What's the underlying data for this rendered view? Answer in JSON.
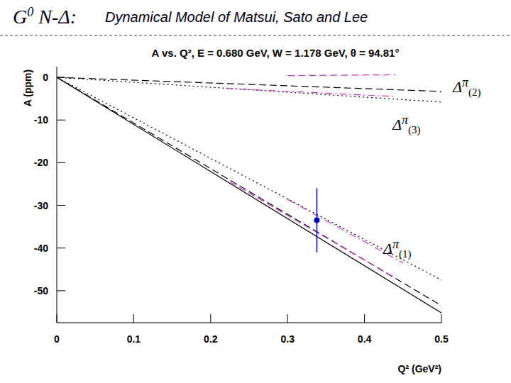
{
  "heading": {
    "title": "G",
    "title_sup": "0",
    "title_rest": " N-Δ:",
    "subtitle": "Dynamical Model of Matsui, Sato and Lee"
  },
  "chart_data": {
    "type": "line",
    "title": "A vs. Q², E = 0.680 GeV, W = 1.178 GeV, θ = 94.81°",
    "x_label": "Q² (GeV²)",
    "y_label": "A (ppm)",
    "xlim": [
      0,
      0.5
    ],
    "ylim": [
      -57.5,
      2.5
    ],
    "xticks": [
      0,
      0.1,
      0.2,
      0.3,
      0.4,
      0.5
    ],
    "yticks": [
      0,
      -10,
      -20,
      -30,
      -40,
      -50
    ],
    "grid": false,
    "annotations": [
      {
        "text": "Δ",
        "sup": "π",
        "sub": "(2)"
      },
      {
        "text": "Δ",
        "sup": "π",
        "sub": "(3)"
      },
      {
        "text": "Δ",
        "sup": "π",
        "sub": "(1)"
      }
    ],
    "series": [
      {
        "type": "line",
        "color": "#000000",
        "line_style": "solid",
        "x": [
          0,
          0.5
        ],
        "values": [
          0,
          -55.2
        ]
      },
      {
        "type": "line",
        "color": "#000000",
        "line_style": "dashed",
        "x": [
          0,
          0.5
        ],
        "values": [
          0,
          -53.5
        ]
      },
      {
        "type": "line",
        "color": "#000000",
        "line_style": "dotted",
        "x": [
          0,
          0.5
        ],
        "values": [
          0,
          -47.5
        ]
      },
      {
        "type": "line",
        "color": "#000000",
        "line_style": "dotted",
        "x": [
          0,
          0.5
        ],
        "values": [
          0,
          -5.8
        ]
      },
      {
        "type": "line",
        "color": "#000000",
        "line_style": "dashed",
        "x": [
          0,
          0.5
        ],
        "values": [
          0,
          -3.3
        ]
      },
      {
        "type": "line",
        "color": "#cc33cc",
        "line_style": "dashed",
        "x": [
          0.225,
          0.44
        ],
        "values": [
          -24.5,
          -47
        ]
      },
      {
        "type": "line",
        "color": "#cc33cc",
        "line_style": "dashdot",
        "x": [
          0.3,
          0.45
        ],
        "values": [
          -28.6,
          -43.5
        ]
      },
      {
        "type": "line",
        "color": "#cc33cc",
        "line_style": "dashdot",
        "x": [
          0.22,
          0.44
        ],
        "values": [
          -2.6,
          -4.5
        ]
      },
      {
        "type": "line",
        "color": "#cc33cc",
        "line_style": "dashed",
        "x": [
          0.3,
          0.44
        ],
        "values": [
          0.4,
          0.6
        ]
      },
      {
        "type": "scatter",
        "color": "#0000cc",
        "marker": "circle",
        "x": [
          0.338
        ],
        "values": [
          -33.5
        ],
        "error": [
          7.5
        ]
      }
    ]
  }
}
